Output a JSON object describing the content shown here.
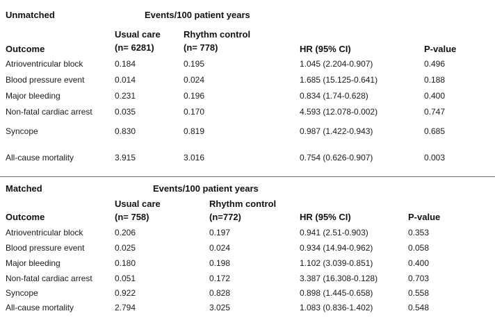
{
  "unmatched": {
    "section_label": "Unmatched",
    "events_header": "Events/100 patient years",
    "col_usual_l1": "Usual care",
    "col_usual_l2": "(n= 6281)",
    "col_rhythm_l1": "Rhythm control",
    "col_rhythm_l2": "(n= 778)",
    "col_outcome": "Outcome",
    "col_hr": "HR (95% CI)",
    "col_p": "P-value",
    "rows": [
      {
        "outcome": "Atrioventricular block",
        "usual": "0.184",
        "rhythm": "0.195",
        "hr": "1.045 (2.204-0.907)",
        "p": "0.496"
      },
      {
        "outcome": "Blood pressure event",
        "usual": "0.014",
        "rhythm": "0.024",
        "hr": "1.685 (15.125-0.641)",
        "p": "0.188"
      },
      {
        "outcome": "Major bleeding",
        "usual": "0.231",
        "rhythm": "0.196",
        "hr": "0.834 (1.74-0.628)",
        "p": "0.400"
      },
      {
        "outcome": "Non-fatal cardiac arrest",
        "usual": "0.035",
        "rhythm": "0.170",
        "hr": "4.593 (12.078-0.002)",
        "p": "0.747"
      },
      {
        "outcome": "Syncope",
        "usual": "0.830",
        "rhythm": "0.819",
        "hr": "0.987 (1.422-0.943)",
        "p": "0.685"
      },
      {
        "outcome": "All-cause mortality",
        "usual": "3.915",
        "rhythm": "3.016",
        "hr": "0.754 (0.626-0.907)",
        "p": "0.003"
      }
    ]
  },
  "matched": {
    "section_label": "Matched",
    "events_header": "Events/100 patient years",
    "col_usual_l1": "Usual care",
    "col_usual_l2": "(n= 758)",
    "col_rhythm_l1": "Rhythm control",
    "col_rhythm_l2": "(n=772)",
    "col_outcome": "Outcome",
    "col_hr": "HR (95% CI)",
    "col_p": "P-value",
    "rows": [
      {
        "outcome": "Atrioventricular block",
        "usual": "0.206",
        "rhythm": "0.197",
        "hr": "0.941 (2.51-0.903)",
        "p": "0.353"
      },
      {
        "outcome": "Blood pressure event",
        "usual": "0.025",
        "rhythm": "0.024",
        "hr": "0.934 (14.94-0.962)",
        "p": "0.058"
      },
      {
        "outcome": "Major bleeding",
        "usual": "0.180",
        "rhythm": "0.198",
        "hr": "1.102 (3.039-0.851)",
        "p": "0.400"
      },
      {
        "outcome": "Non-fatal cardiac arrest",
        "usual": "0.051",
        "rhythm": "0.172",
        "hr": "3.387 (16.308-0.128)",
        "p": "0.703"
      },
      {
        "outcome": "Syncope",
        "usual": "0.922",
        "rhythm": "0.828",
        "hr": "0.898 (1.445-0.658)",
        "p": "0.558"
      },
      {
        "outcome": "All-cause mortality",
        "usual": "2.794",
        "rhythm": "3.025",
        "hr": "1.083 (0.836-1.402)",
        "p": "0.548"
      }
    ]
  }
}
